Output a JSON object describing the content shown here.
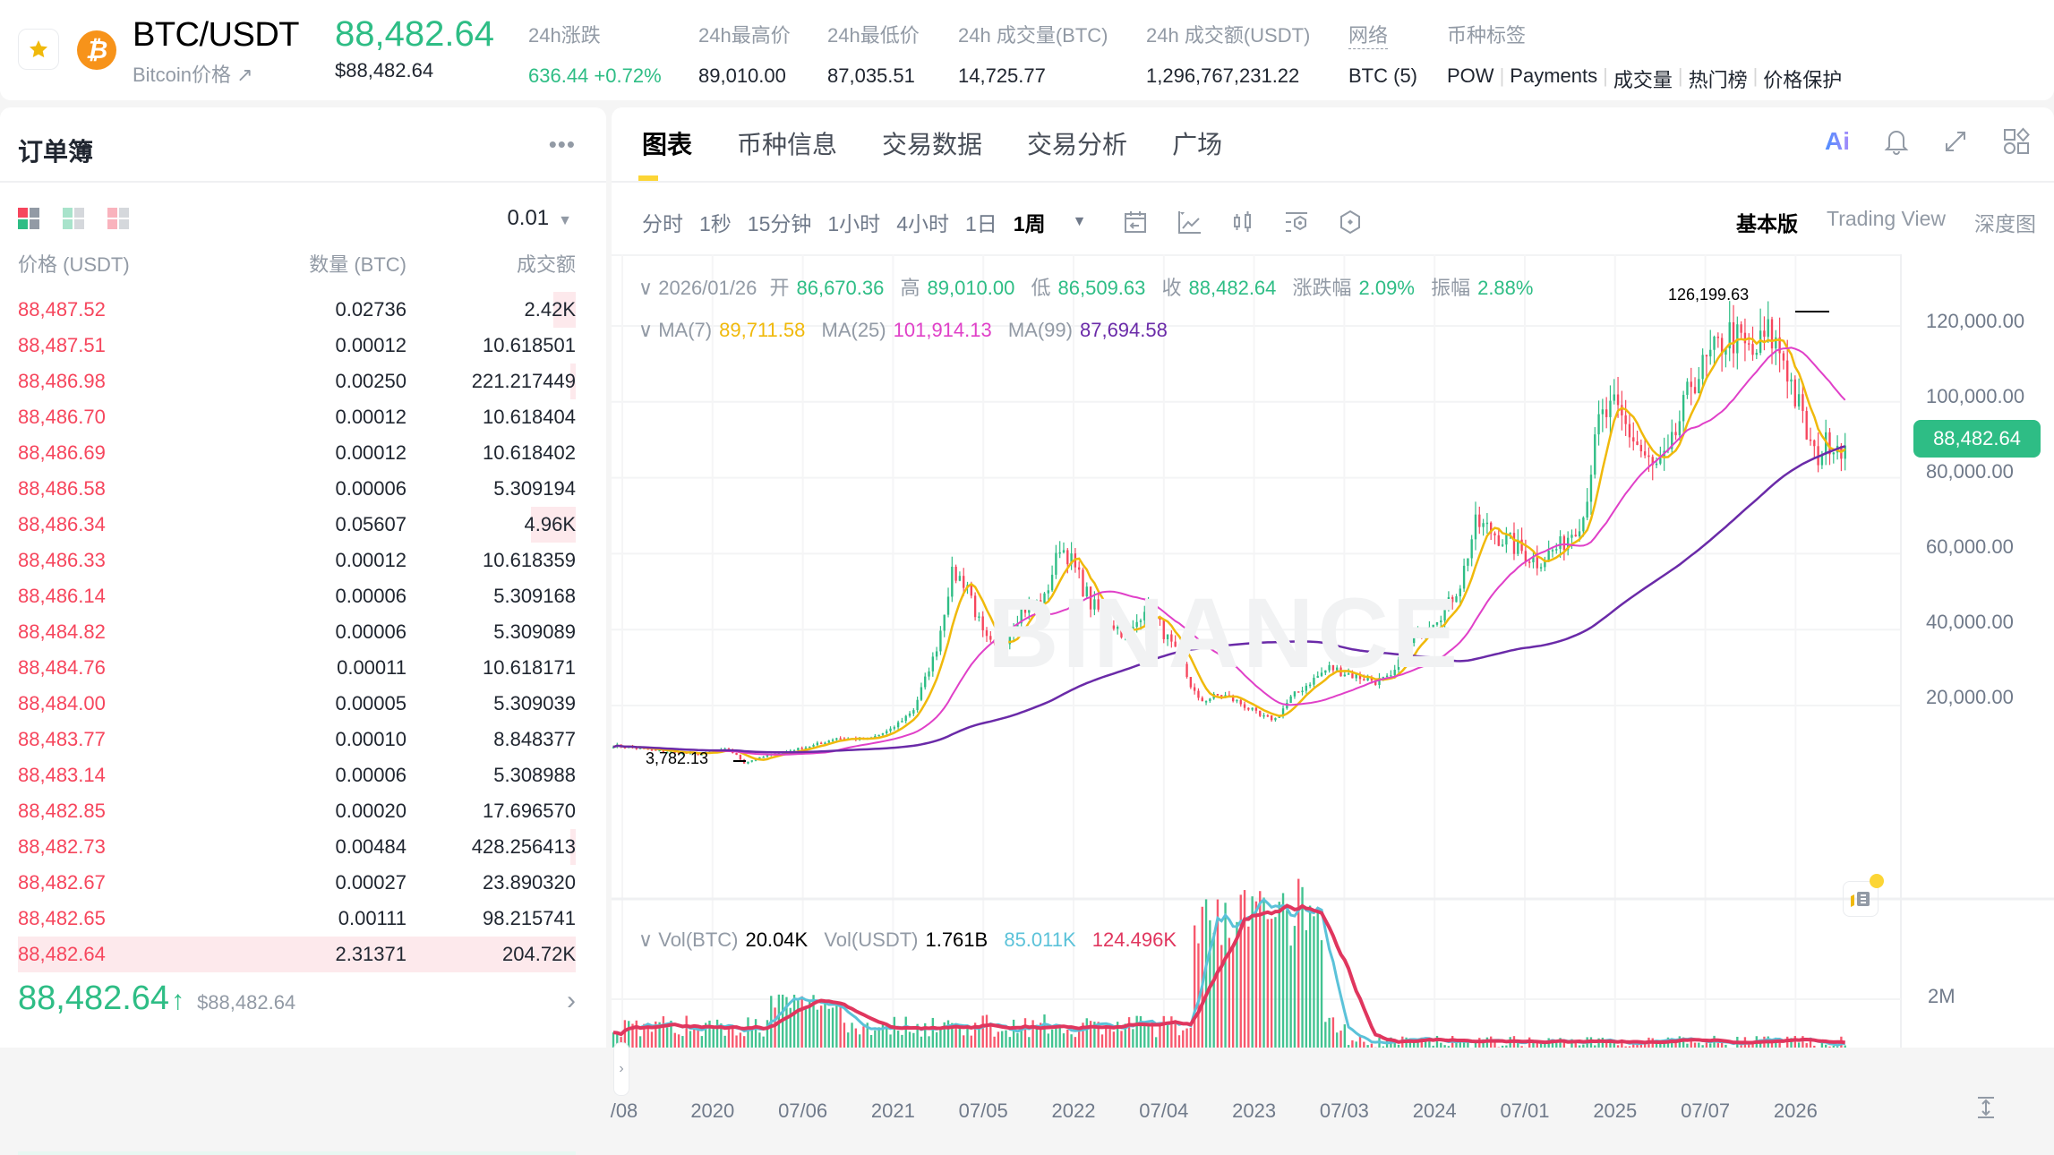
{
  "header": {
    "pair": "BTC/USDT",
    "subtitle": "Bitcoin价格 ↗",
    "last_price": "88,482.64",
    "last_price_usd": "$88,482.64",
    "stats": [
      {
        "label": "24h涨跌",
        "value": "636.44 +0.72%",
        "color": "green"
      },
      {
        "label": "24h最高价",
        "value": "89,010.00"
      },
      {
        "label": "24h最低价",
        "value": "87,035.51"
      },
      {
        "label": "24h 成交量(BTC)",
        "value": "14,725.77"
      },
      {
        "label": "24h 成交额(USDT)",
        "value": "1,296,767,231.22"
      },
      {
        "label": "网络",
        "value": "BTC (5)"
      }
    ],
    "tags_label": "币种标签",
    "tags": [
      "POW",
      "Payments",
      "成交量",
      "热门榜",
      "价格保护"
    ]
  },
  "orderbook": {
    "title": "订单簿",
    "more": "•••",
    "tick": "0.01",
    "columns": [
      "价格 (USDT)",
      "数量 (BTC)",
      "成交额"
    ],
    "asks": [
      {
        "price": "88,487.52",
        "qty": "0.02736",
        "total": "2.42K",
        "depth": 4
      },
      {
        "price": "88,487.51",
        "qty": "0.00012",
        "total": "10.618501",
        "depth": 0
      },
      {
        "price": "88,486.98",
        "qty": "0.00250",
        "total": "221.217449",
        "depth": 1
      },
      {
        "price": "88,486.70",
        "qty": "0.00012",
        "total": "10.618404",
        "depth": 0
      },
      {
        "price": "88,486.69",
        "qty": "0.00012",
        "total": "10.618402",
        "depth": 0
      },
      {
        "price": "88,486.58",
        "qty": "0.00006",
        "total": "5.309194",
        "depth": 0
      },
      {
        "price": "88,486.34",
        "qty": "0.05607",
        "total": "4.96K",
        "depth": 8
      },
      {
        "price": "88,486.33",
        "qty": "0.00012",
        "total": "10.618359",
        "depth": 0
      },
      {
        "price": "88,486.14",
        "qty": "0.00006",
        "total": "5.309168",
        "depth": 0
      },
      {
        "price": "88,484.82",
        "qty": "0.00006",
        "total": "5.309089",
        "depth": 0
      },
      {
        "price": "88,484.76",
        "qty": "0.00011",
        "total": "10.618171",
        "depth": 0
      },
      {
        "price": "88,484.00",
        "qty": "0.00005",
        "total": "5.309039",
        "depth": 0
      },
      {
        "price": "88,483.77",
        "qty": "0.00010",
        "total": "8.848377",
        "depth": 0
      },
      {
        "price": "88,483.14",
        "qty": "0.00006",
        "total": "5.308988",
        "depth": 0
      },
      {
        "price": "88,482.85",
        "qty": "0.00020",
        "total": "17.696570",
        "depth": 0
      },
      {
        "price": "88,482.73",
        "qty": "0.00484",
        "total": "428.256413",
        "depth": 1
      },
      {
        "price": "88,482.67",
        "qty": "0.00027",
        "total": "23.890320",
        "depth": 0
      },
      {
        "price": "88,482.65",
        "qty": "0.00111",
        "total": "98.215741",
        "depth": 0
      },
      {
        "price": "88,482.64",
        "qty": "2.31371",
        "total": "204.72K",
        "depth": 100
      }
    ],
    "mid_price": "88,482.64",
    "mid_arrow": "↑",
    "mid_usd": "$88,482.64",
    "mid_chevron": "›"
  },
  "chart_panel": {
    "tabs": [
      "图表",
      "币种信息",
      "交易数据",
      "交易分析",
      "广场"
    ],
    "active_tab": 0,
    "intervals": [
      "分时",
      "1秒",
      "15分钟",
      "1小时",
      "4小时",
      "1日",
      "1周"
    ],
    "active_interval": 6,
    "interval_dropdown": "▼",
    "views": [
      "基本版",
      "Trading View",
      "深度图"
    ],
    "active_view": 0,
    "ai_label": "Ai"
  },
  "chart_data": {
    "type": "candlestick",
    "title": "BTC/USDT 1周",
    "ohlc_legend": {
      "date": "2026/01/26",
      "open_label": "开",
      "open": "86,670.36",
      "high_label": "高",
      "high": "89,010.00",
      "low_label": "低",
      "low": "86,509.63",
      "close_label": "收",
      "close": "88,482.64",
      "change_label": "涨跌幅",
      "change": "2.09%",
      "amp_label": "振幅",
      "amp": "2.88%"
    },
    "ma_legend": [
      {
        "label": "MA(7)",
        "value": "89,711.58",
        "color": "#f0b90b"
      },
      {
        "label": "MA(25)",
        "value": "101,914.13",
        "color": "#e040c8"
      },
      {
        "label": "MA(99)",
        "value": "87,694.58",
        "color": "#6a2aa8"
      }
    ],
    "vol_legend": [
      {
        "label": "Vol(BTC)",
        "value": "20.04K",
        "color": "#000000"
      },
      {
        "label": "Vol(USDT)",
        "value": "1.761B",
        "color": "#000000"
      },
      {
        "label": "",
        "value": "85.011K",
        "color": "#5bc2d9"
      },
      {
        "label": "",
        "value": "124.496K",
        "color": "#e0365e"
      }
    ],
    "y_ticks": [
      "120,000.00",
      "100,000.00",
      "80,000.00",
      "60,000.00",
      "40,000.00",
      "20,000.00"
    ],
    "y_values": [
      120000,
      100000,
      80000,
      60000,
      40000,
      20000
    ],
    "vol_y_tick": "2M",
    "x_ticks": [
      "/08",
      "2020",
      "07/06",
      "2021",
      "07/05",
      "2022",
      "07/04",
      "2023",
      "07/03",
      "2024",
      "07/01",
      "2025",
      "07/07",
      "2026"
    ],
    "current_price_tag": "88,482.64",
    "high_marker": "126,199.63",
    "low_marker": "3,782.13",
    "watermark": "BINANCE",
    "price_path_anchors": [
      [
        0,
        9500
      ],
      [
        12,
        8000
      ],
      [
        22,
        7200
      ],
      [
        30,
        8500
      ],
      [
        34,
        5000
      ],
      [
        40,
        6800
      ],
      [
        52,
        9500
      ],
      [
        58,
        11500
      ],
      [
        66,
        11000
      ],
      [
        72,
        13500
      ],
      [
        78,
        19000
      ],
      [
        84,
        35000
      ],
      [
        88,
        55000
      ],
      [
        92,
        52000
      ],
      [
        96,
        38000
      ],
      [
        100,
        34000
      ],
      [
        106,
        45000
      ],
      [
        112,
        48000
      ],
      [
        116,
        62000
      ],
      [
        118,
        60000
      ],
      [
        124,
        47000
      ],
      [
        128,
        43000
      ],
      [
        134,
        38000
      ],
      [
        138,
        46000
      ],
      [
        142,
        41000
      ],
      [
        148,
        30000
      ],
      [
        152,
        21000
      ],
      [
        158,
        23000
      ],
      [
        164,
        20000
      ],
      [
        168,
        17000
      ],
      [
        172,
        16500
      ],
      [
        176,
        22000
      ],
      [
        182,
        27000
      ],
      [
        186,
        30000
      ],
      [
        192,
        28000
      ],
      [
        198,
        26500
      ],
      [
        202,
        27000
      ],
      [
        206,
        35000
      ],
      [
        212,
        42000
      ],
      [
        216,
        45000
      ],
      [
        220,
        52000
      ],
      [
        224,
        68000
      ],
      [
        228,
        66000
      ],
      [
        234,
        62000
      ],
      [
        240,
        58000
      ],
      [
        246,
        62000
      ],
      [
        252,
        70000
      ],
      [
        256,
        95000
      ],
      [
        260,
        98000
      ],
      [
        264,
        92000
      ],
      [
        270,
        82000
      ],
      [
        274,
        85000
      ],
      [
        280,
        105000
      ],
      [
        284,
        110000
      ],
      [
        290,
        118000
      ],
      [
        296,
        112000
      ],
      [
        300,
        118000
      ],
      [
        304,
        112000
      ],
      [
        308,
        98000
      ],
      [
        312,
        85000
      ],
      [
        316,
        90000
      ],
      [
        320,
        88500
      ]
    ]
  },
  "colors": {
    "up": "#2ebd85",
    "down": "#f6465d",
    "accent": "#fcd535",
    "tag": "#d89f00"
  }
}
